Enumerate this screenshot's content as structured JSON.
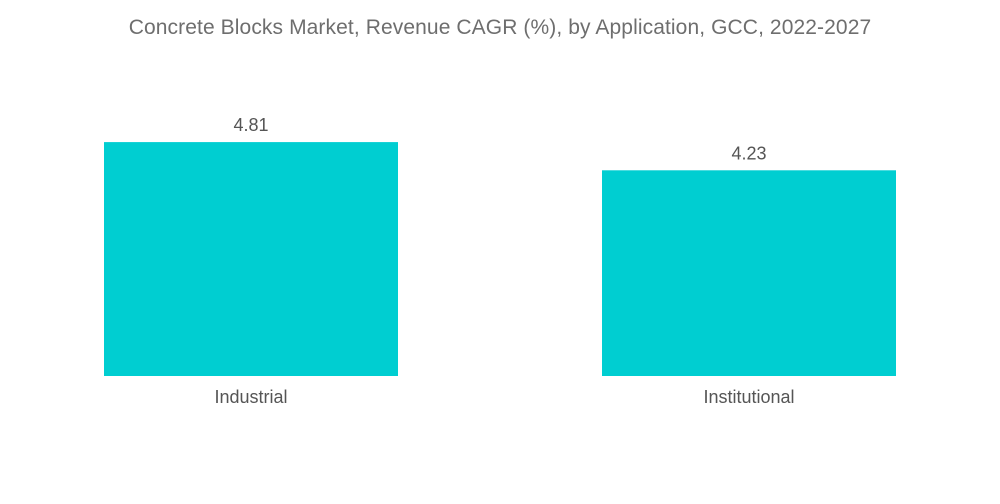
{
  "chart_data": {
    "type": "bar",
    "title": "Concrete Blocks Market, Revenue CAGR (%), by Application, GCC, 2022-2027",
    "categories": [
      "Industrial",
      "Institutional"
    ],
    "values": [
      4.81,
      4.23
    ],
    "value_labels": [
      "4.81",
      "4.23"
    ],
    "xlabel": "",
    "ylabel": "",
    "ylim": [
      0,
      5.8
    ],
    "grid": false,
    "legend": "none",
    "bar_color": "#00CED1"
  }
}
